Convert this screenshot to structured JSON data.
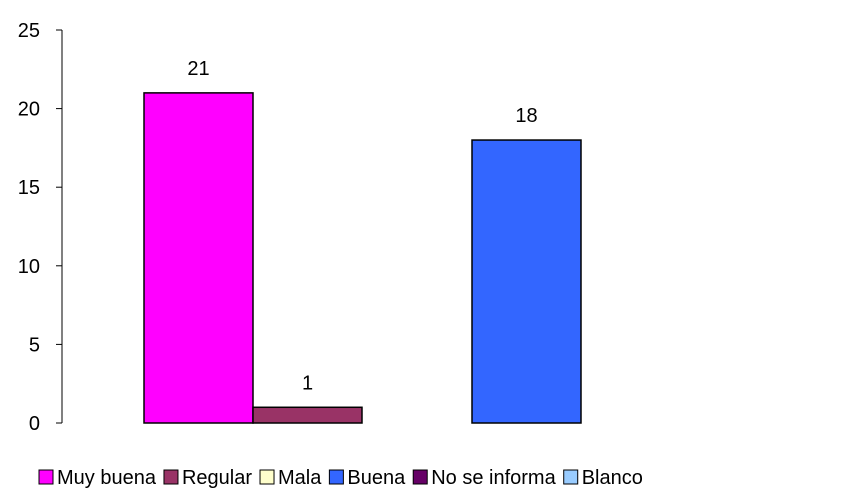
{
  "chart_data": {
    "type": "bar",
    "title": "",
    "xlabel": "",
    "ylabel": "",
    "ylim": [
      0,
      25
    ],
    "yticks": [
      0,
      5,
      10,
      15,
      20,
      25
    ],
    "grid": false,
    "legend_position": "bottom",
    "series": [
      {
        "name": "Muy buena",
        "value": 21,
        "color": "#ff00ff"
      },
      {
        "name": "Regular",
        "value": 1,
        "color": "#993366"
      },
      {
        "name": "Mala",
        "value": 0,
        "color": "#ffffcc"
      },
      {
        "name": "Buena",
        "value": 18,
        "color": "#3366ff"
      },
      {
        "name": "No se informa",
        "value": 0,
        "color": "#660066"
      },
      {
        "name": "Blanco",
        "value": 0,
        "color": "#99ccff"
      }
    ]
  }
}
